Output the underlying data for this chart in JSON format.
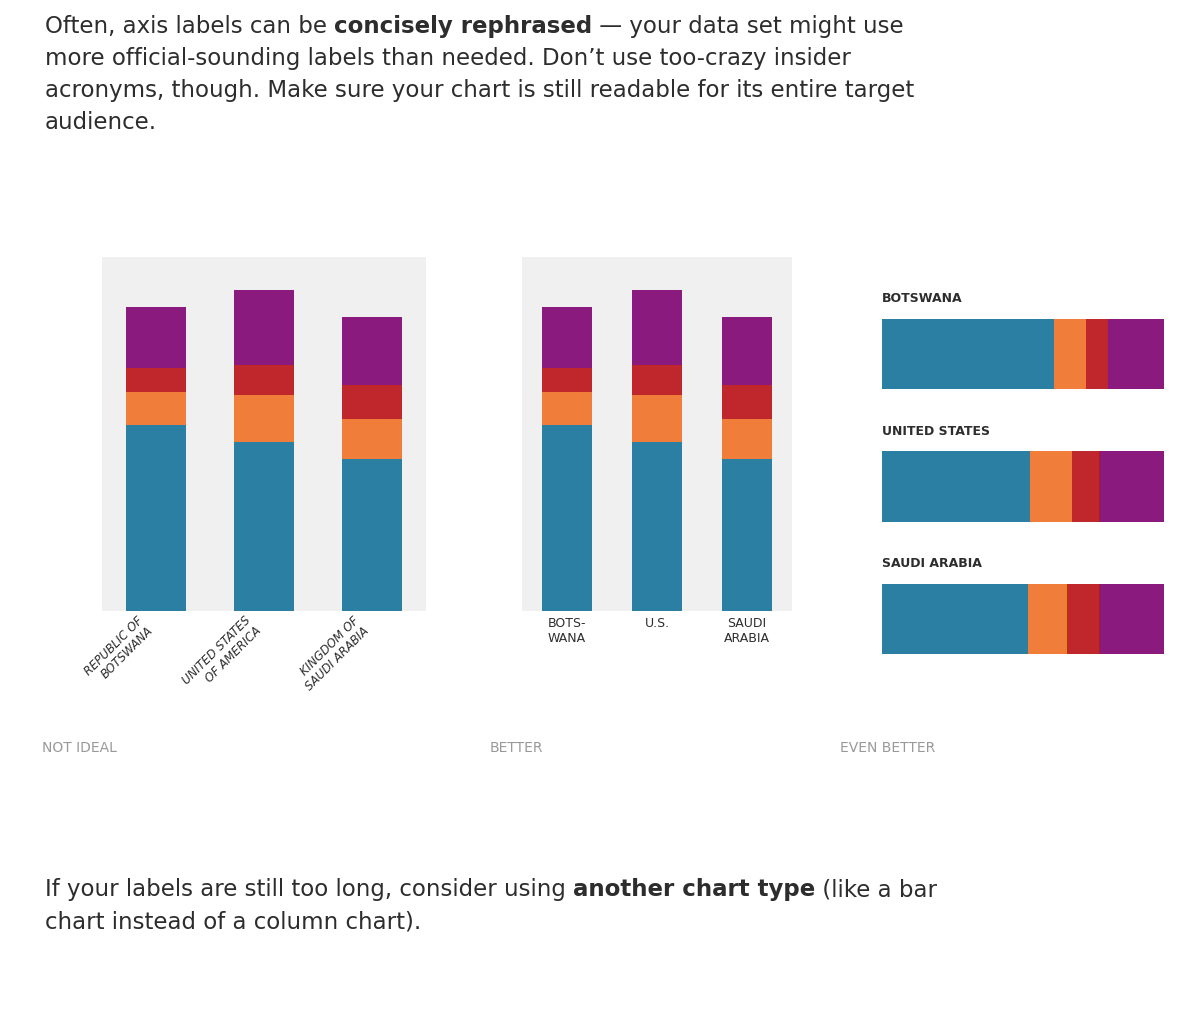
{
  "panel_bg": "#f0f0f0",
  "page_bg": "#ffffff",
  "label_not_ideal": "NOT IDEAL",
  "label_better": "BETTER",
  "label_even_better": "EVEN BETTER",
  "colors": {
    "teal": "#2b7fa3",
    "orange": "#f07d3a",
    "red": "#c0272d",
    "purple": "#8b1a7e"
  },
  "bar_data": {
    "botswana": [
      55,
      10,
      7,
      18
    ],
    "us": [
      50,
      14,
      9,
      22
    ],
    "saudi": [
      45,
      12,
      10,
      20
    ]
  },
  "col_labels_ideal": [
    "REPUBLIC OF\nBOTSWANA",
    "UNITED STATES\nOF AMERICA",
    "KINGDOM OF\nSAUDI ARABIA"
  ],
  "col_labels_better": [
    "BOTS-\nWANA",
    "U.S.",
    "SAUDI\nARABIA"
  ],
  "horiz_labels": [
    "BOTSWANA",
    "UNITED STATES",
    "SAUDI ARABIA"
  ],
  "text_color": "#2d2d2d",
  "label_color": "#999999",
  "top_line1_parts": [
    {
      "text": "Often, axis labels can be ",
      "bold": false
    },
    {
      "text": "concisely rephrased",
      "bold": true
    },
    {
      "text": " — your data set might use",
      "bold": false
    }
  ],
  "top_line2": "more official-sounding labels than needed. Don’t use too-crazy insider",
  "top_line3": "acronyms, though. Make sure your chart is still readable for its entire target",
  "top_line4": "audience.",
  "bot_line1_parts": [
    {
      "text": "If your labels are still too long, consider using ",
      "bold": false
    },
    {
      "text": "another chart type",
      "bold": true
    },
    {
      "text": " (like a bar",
      "bold": false
    }
  ],
  "bot_line2": "chart instead of a column chart)."
}
